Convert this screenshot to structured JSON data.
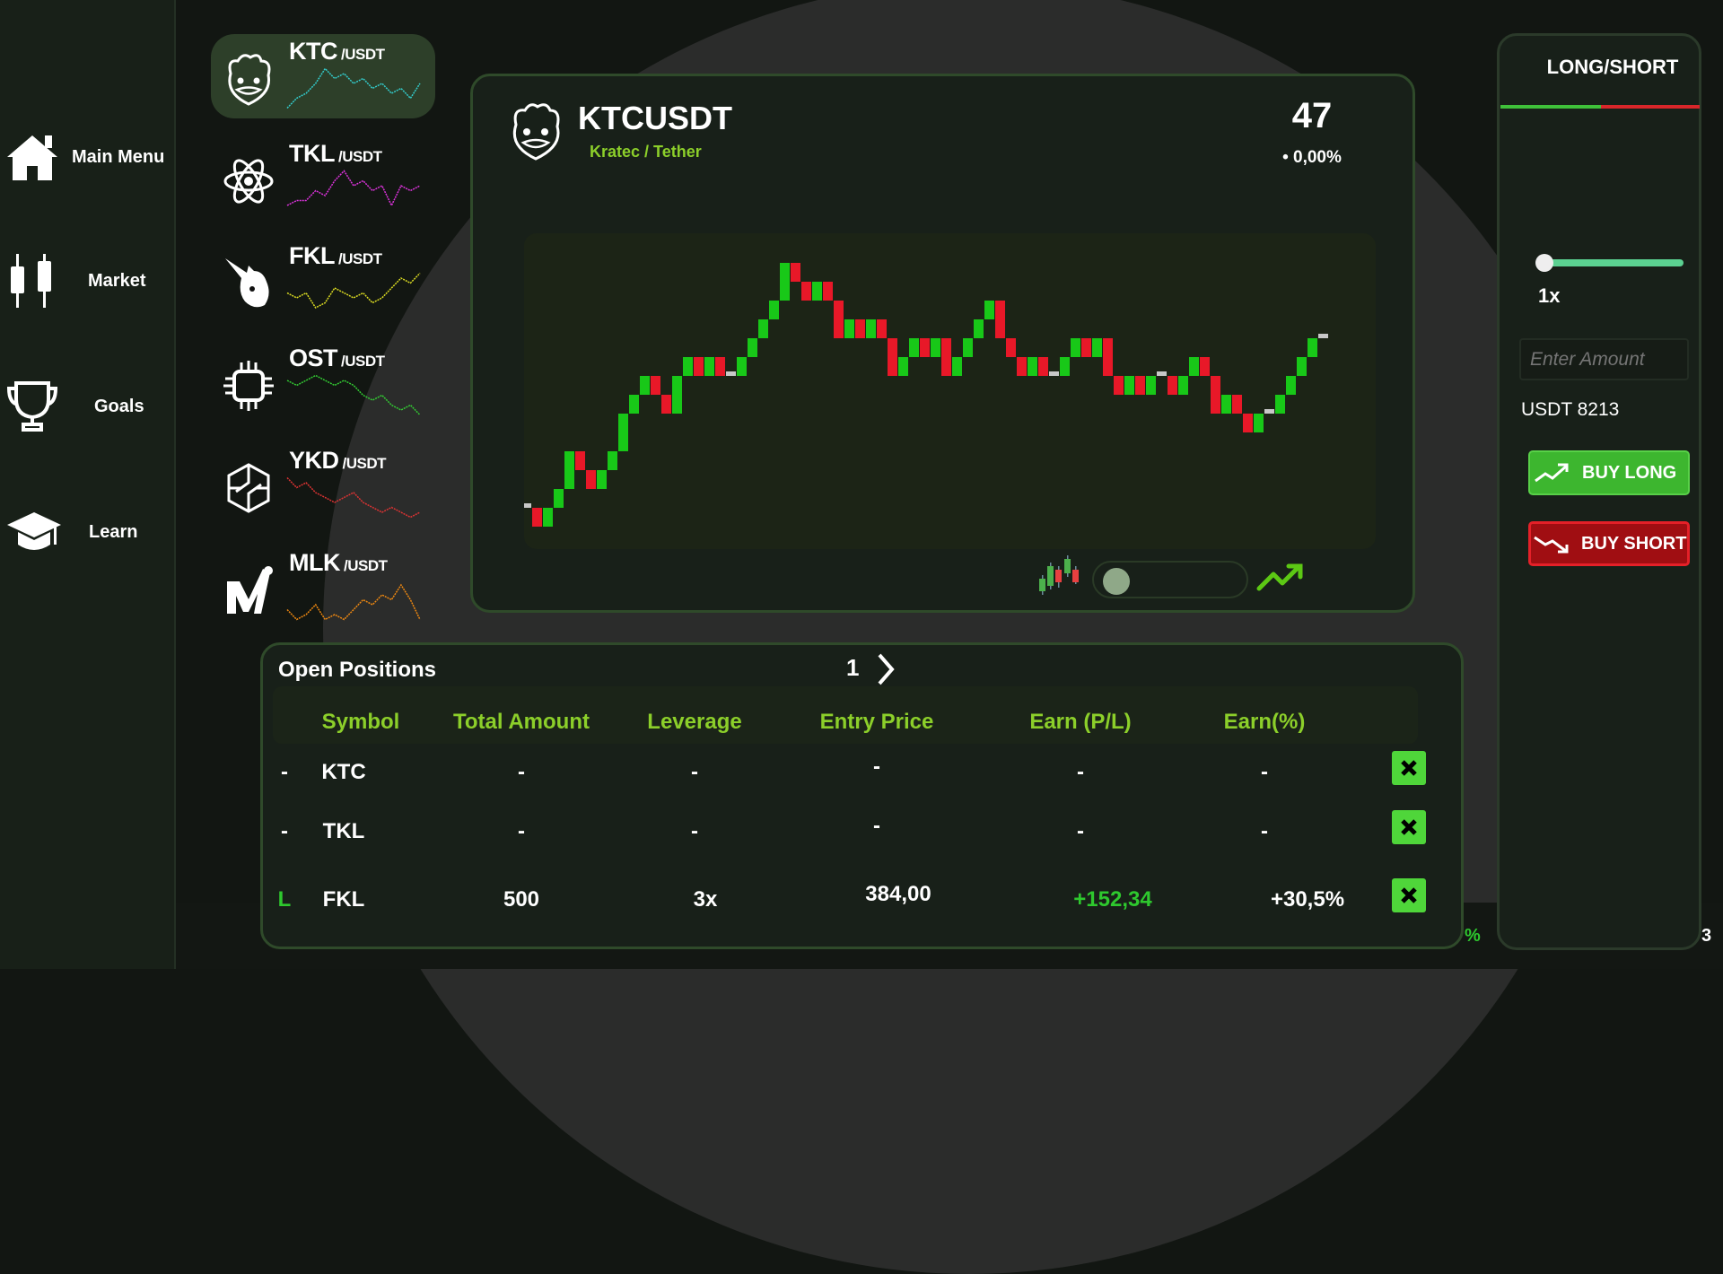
{
  "nav": {
    "items": [
      {
        "label": "Main Menu",
        "icon": "home-icon"
      },
      {
        "label": "Market",
        "icon": "candlestick-icon"
      },
      {
        "label": "Goals",
        "icon": "trophy-icon"
      },
      {
        "label": "Learn",
        "icon": "graduation-cap-icon"
      }
    ]
  },
  "coins": [
    {
      "symbol": "KTC",
      "quote": "/USDT",
      "icon": "hamster-icon",
      "color": "#33cccc",
      "active": true,
      "spark": [
        1,
        3,
        4,
        6,
        9,
        7,
        8,
        6,
        7,
        5,
        6,
        4,
        5,
        3,
        6
      ]
    },
    {
      "symbol": "TKL",
      "quote": "/USDT",
      "icon": "atom-icon",
      "color": "#dd33dd",
      "active": false,
      "spark": [
        2,
        3,
        3,
        5,
        4,
        7,
        9,
        6,
        7,
        5,
        6,
        2,
        6,
        5,
        6
      ]
    },
    {
      "symbol": "FKL",
      "quote": "/USDT",
      "icon": "unicorn-icon",
      "color": "#dddd22",
      "active": false,
      "spark": [
        5,
        4,
        5,
        2,
        3,
        6,
        5,
        4,
        5,
        3,
        4,
        6,
        8,
        7,
        9
      ]
    },
    {
      "symbol": "OST",
      "quote": "/USDT",
      "icon": "chip-icon",
      "color": "#33cc33",
      "active": false,
      "spark": [
        8,
        7,
        8,
        9,
        8,
        7,
        8,
        7,
        5,
        4,
        5,
        3,
        2,
        3,
        1
      ]
    },
    {
      "symbol": "YKD",
      "quote": "/USDT",
      "icon": "brain-icon",
      "color": "#dd3333",
      "active": false,
      "spark": [
        9,
        7,
        8,
        6,
        5,
        4,
        5,
        6,
        4,
        3,
        2,
        3,
        2,
        1,
        2
      ]
    },
    {
      "symbol": "MLK",
      "quote": "/USDT",
      "icon": "m-logo-icon",
      "color": "#ee8811",
      "active": false,
      "spark": [
        3,
        1,
        2,
        4,
        1,
        2,
        1,
        3,
        5,
        4,
        6,
        5,
        8,
        5,
        1
      ]
    }
  ],
  "chart": {
    "pair": "KTCUSDT",
    "name": "Kratec / Tether",
    "price": "47",
    "change": "• 0,00%"
  },
  "chart_data": {
    "type": "candlestick",
    "colors": {
      "up": "#18c818",
      "down": "#e81828",
      "flat": "#c8c8c8"
    },
    "candles": [
      [
        1,
        1
      ],
      [
        1,
        0
      ],
      [
        0,
        1
      ],
      [
        1,
        2
      ],
      [
        2,
        4
      ],
      [
        4,
        3
      ],
      [
        3,
        2
      ],
      [
        2,
        3
      ],
      [
        3,
        4
      ],
      [
        4,
        6
      ],
      [
        6,
        7
      ],
      [
        7,
        8
      ],
      [
        8,
        7
      ],
      [
        7,
        6
      ],
      [
        6,
        8
      ],
      [
        8,
        9
      ],
      [
        9,
        8
      ],
      [
        8,
        9
      ],
      [
        9,
        8
      ],
      [
        8,
        8
      ],
      [
        8,
        9
      ],
      [
        9,
        10
      ],
      [
        10,
        11
      ],
      [
        11,
        12
      ],
      [
        12,
        14
      ],
      [
        14,
        13
      ],
      [
        13,
        12
      ],
      [
        12,
        13
      ],
      [
        13,
        12
      ],
      [
        12,
        10
      ],
      [
        10,
        11
      ],
      [
        11,
        10
      ],
      [
        10,
        11
      ],
      [
        11,
        10
      ],
      [
        10,
        8
      ],
      [
        8,
        9
      ],
      [
        9,
        10
      ],
      [
        10,
        9
      ],
      [
        9,
        10
      ],
      [
        10,
        8
      ],
      [
        8,
        9
      ],
      [
        9,
        10
      ],
      [
        10,
        11
      ],
      [
        11,
        12
      ],
      [
        12,
        10
      ],
      [
        10,
        9
      ],
      [
        9,
        8
      ],
      [
        8,
        9
      ],
      [
        9,
        8
      ],
      [
        8,
        8
      ],
      [
        8,
        9
      ],
      [
        9,
        10
      ],
      [
        10,
        9
      ],
      [
        9,
        10
      ],
      [
        10,
        8
      ],
      [
        8,
        7
      ],
      [
        7,
        8
      ],
      [
        8,
        7
      ],
      [
        7,
        8
      ],
      [
        8,
        8
      ],
      [
        8,
        7
      ],
      [
        7,
        8
      ],
      [
        8,
        9
      ],
      [
        9,
        8
      ],
      [
        8,
        6
      ],
      [
        6,
        7
      ],
      [
        7,
        6
      ],
      [
        6,
        5
      ],
      [
        5,
        6
      ],
      [
        6,
        6
      ],
      [
        6,
        7
      ],
      [
        7,
        8
      ],
      [
        8,
        9
      ],
      [
        9,
        10
      ],
      [
        10,
        10
      ]
    ]
  },
  "chart_mode": {
    "left_icon": "candlestick-chart-icon",
    "right_icon": "line-trend-icon",
    "selected": "candlestick"
  },
  "positions": {
    "title": "Open Positions",
    "page": "1",
    "columns": [
      "Symbol",
      "Total Amount",
      "Leverage",
      "Entry Price",
      "Earn (P/L)",
      "Earn(%)"
    ],
    "rows": [
      {
        "side": "-",
        "symbol": "KTC",
        "amount": "-",
        "leverage": "-",
        "entry": "-",
        "pl": "-",
        "pct": "-"
      },
      {
        "side": "-",
        "symbol": "TKL",
        "amount": "-",
        "leverage": "-",
        "entry": "-",
        "pl": "-",
        "pct": "-"
      },
      {
        "side": "L",
        "symbol": "FKL",
        "amount": "500",
        "leverage": "3x",
        "entry": "384,00",
        "pl": "+152,34",
        "pct": "+30,5%"
      }
    ]
  },
  "trade": {
    "title": "LONG/SHORT",
    "leverage": "1x",
    "leverage_fraction": 0,
    "amount_placeholder": "Enter Amount",
    "balance": "USDT 8213",
    "buy_long": "BUY LONG",
    "buy_short": "BUY SHORT"
  },
  "footer": {
    "left_fragment": "%",
    "right_fragment": "3"
  }
}
